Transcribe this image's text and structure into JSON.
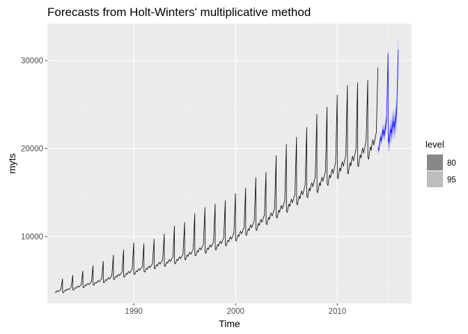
{
  "chart_data": {
    "type": "line",
    "title": "Forecasts from Holt-Winters' multiplicative method",
    "xlabel": "Time",
    "ylabel": "myts",
    "xlim": [
      1981.5,
      2017.3
    ],
    "ylim": [
      2400,
      34200
    ],
    "x_ticks": [
      {
        "value": 1990,
        "label": "1990"
      },
      {
        "value": 2000,
        "label": "2000"
      },
      {
        "value": 2010,
        "label": "2010"
      }
    ],
    "y_ticks": [
      {
        "value": 10000,
        "label": "10000"
      },
      {
        "value": 20000,
        "label": "20000"
      },
      {
        "value": 30000,
        "label": "30000"
      }
    ],
    "grid": true,
    "background": "#ebebeb",
    "legend": {
      "title": "level",
      "position": "right",
      "entries": [
        {
          "label": "80",
          "color": "#888888"
        },
        {
          "label": "95",
          "color": "#bdbdbd"
        }
      ]
    },
    "series": [
      {
        "kind": "actual",
        "color": "#000000",
        "frequency": 12,
        "start_year": 1982.25,
        "end_year": 2014.0,
        "annual_peaks": [
          {
            "year": 1983,
            "peak": 5200,
            "base": 3700
          },
          {
            "year": 1984,
            "peak": 5600,
            "base": 3900
          },
          {
            "year": 1985,
            "peak": 6100,
            "base": 4200
          },
          {
            "year": 1986,
            "peak": 6700,
            "base": 4500
          },
          {
            "year": 1987,
            "peak": 7200,
            "base": 4800
          },
          {
            "year": 1988,
            "peak": 7900,
            "base": 5100
          },
          {
            "year": 1989,
            "peak": 8500,
            "base": 5500
          },
          {
            "year": 1990,
            "peak": 9300,
            "base": 5800
          },
          {
            "year": 1991,
            "peak": 9200,
            "base": 6100
          },
          {
            "year": 1992,
            "peak": 9700,
            "base": 6400
          },
          {
            "year": 1993,
            "peak": 10300,
            "base": 6800
          },
          {
            "year": 1994,
            "peak": 11200,
            "base": 7100
          },
          {
            "year": 1995,
            "peak": 11600,
            "base": 7400
          },
          {
            "year": 1996,
            "peak": 12600,
            "base": 7900
          },
          {
            "year": 1997,
            "peak": 13300,
            "base": 8400
          },
          {
            "year": 1998,
            "peak": 13700,
            "base": 8700
          },
          {
            "year": 1999,
            "peak": 14100,
            "base": 9100
          },
          {
            "year": 2000,
            "peak": 14900,
            "base": 9600
          },
          {
            "year": 2001,
            "peak": 15500,
            "base": 10200
          },
          {
            "year": 2002,
            "peak": 16700,
            "base": 10900
          },
          {
            "year": 2003,
            "peak": 17300,
            "base": 11500
          },
          {
            "year": 2004,
            "peak": 19200,
            "base": 12200
          },
          {
            "year": 2005,
            "peak": 20500,
            "base": 13000
          },
          {
            "year": 2006,
            "peak": 21300,
            "base": 13700
          },
          {
            "year": 2007,
            "peak": 22400,
            "base": 14600
          },
          {
            "year": 2008,
            "peak": 23900,
            "base": 15500
          },
          {
            "year": 2009,
            "peak": 24700,
            "base": 16100
          },
          {
            "year": 2010,
            "peak": 26100,
            "base": 17000
          },
          {
            "year": 2011,
            "peak": 27200,
            "base": 17800
          },
          {
            "year": 2012,
            "peak": 27500,
            "base": 18400
          },
          {
            "year": 2013,
            "peak": 27800,
            "base": 19300
          },
          {
            "year": 2014,
            "peak": 29200,
            "base": 20200
          }
        ]
      },
      {
        "kind": "forecast",
        "color": "#0000ff",
        "frequency": 12,
        "start_year": 2014.0,
        "end_year": 2016.0,
        "annual_peaks": [
          {
            "year": 2015,
            "peak": 30800,
            "base": 21300
          },
          {
            "year": 2016,
            "peak": 31200,
            "base": 22200
          }
        ],
        "interval_80_color": "#7a7aee",
        "interval_95_color": "#b8b8f4"
      }
    ]
  }
}
